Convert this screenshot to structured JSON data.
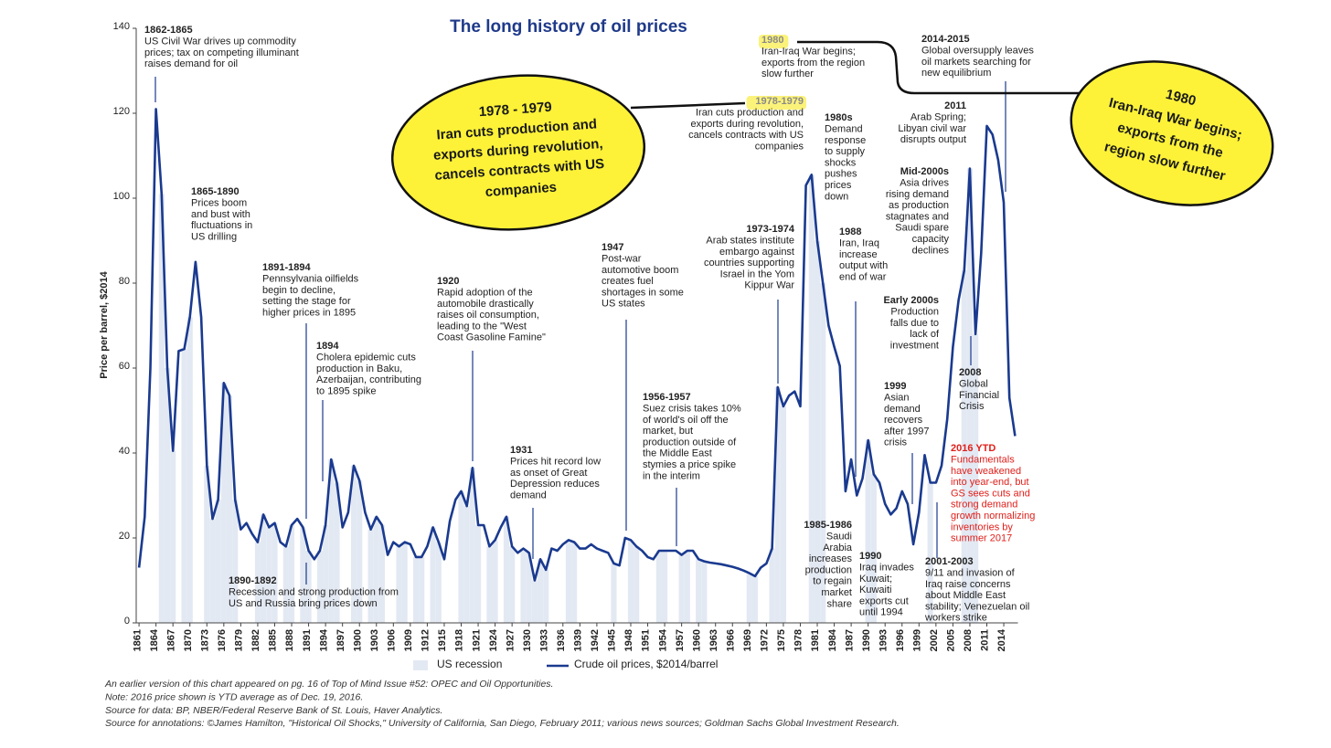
{
  "chart_data": {
    "type": "line",
    "title": "The long history of oil prices",
    "y_label": "Price per barrel, $2014",
    "xlim": [
      1860.5,
      2016.5
    ],
    "ylim": [
      0,
      140
    ],
    "yticks": [
      0,
      20,
      40,
      60,
      80,
      100,
      120,
      140
    ],
    "xticks": [
      1861,
      1864,
      1867,
      1870,
      1873,
      1876,
      1879,
      1882,
      1885,
      1888,
      1891,
      1894,
      1897,
      1900,
      1903,
      1906,
      1909,
      1912,
      1915,
      1918,
      1921,
      1924,
      1927,
      1930,
      1933,
      1936,
      1939,
      1942,
      1945,
      1948,
      1951,
      1954,
      1957,
      1960,
      1963,
      1966,
      1969,
      1972,
      1975,
      1978,
      1981,
      1984,
      1987,
      1990,
      1993,
      1996,
      1999,
      2002,
      2005,
      2008,
      2011,
      2014
    ],
    "x": [
      1861,
      1862,
      1863,
      1864,
      1865,
      1866,
      1867,
      1868,
      1869,
      1870,
      1871,
      1872,
      1873,
      1874,
      1875,
      1876,
      1877,
      1878,
      1879,
      1880,
      1881,
      1882,
      1883,
      1884,
      1885,
      1886,
      1887,
      1888,
      1889,
      1890,
      1891,
      1892,
      1893,
      1894,
      1895,
      1896,
      1897,
      1898,
      1899,
      1900,
      1901,
      1902,
      1903,
      1904,
      1905,
      1906,
      1907,
      1908,
      1909,
      1910,
      1911,
      1912,
      1913,
      1914,
      1915,
      1916,
      1917,
      1918,
      1919,
      1920,
      1921,
      1922,
      1923,
      1924,
      1925,
      1926,
      1927,
      1928,
      1929,
      1930,
      1931,
      1932,
      1933,
      1934,
      1935,
      1936,
      1937,
      1938,
      1939,
      1940,
      1941,
      1942,
      1943,
      1944,
      1945,
      1946,
      1947,
      1948,
      1949,
      1950,
      1951,
      1952,
      1953,
      1954,
      1955,
      1956,
      1957,
      1958,
      1959,
      1960,
      1961,
      1962,
      1963,
      1964,
      1965,
      1966,
      1967,
      1968,
      1969,
      1970,
      1971,
      1972,
      1973,
      1974,
      1975,
      1976,
      1977,
      1978,
      1979,
      1980,
      1981,
      1982,
      1983,
      1984,
      1985,
      1986,
      1987,
      1988,
      1989,
      1990,
      1991,
      1992,
      1993,
      1994,
      1995,
      1996,
      1997,
      1998,
      1999,
      2000,
      2001,
      2002,
      2003,
      2004,
      2005,
      2006,
      2007,
      2008,
      2009,
      2010,
      2011,
      2012,
      2013,
      2014,
      2015,
      2016
    ],
    "series": [
      {
        "name": "Crude oil prices, $2014/barrel",
        "color": "#1a3a8f",
        "values": [
          13,
          25,
          60,
          121,
          101,
          60,
          40.5,
          64,
          64.5,
          72,
          85,
          72,
          37,
          24.5,
          29,
          56.5,
          53.5,
          29,
          22,
          23.5,
          21,
          19,
          25.5,
          22.5,
          23.5,
          19,
          18,
          23,
          24.5,
          22.5,
          17,
          15,
          17,
          23,
          38.5,
          33,
          22.5,
          26,
          37,
          33.5,
          26,
          22,
          25,
          23,
          16,
          19,
          18,
          19,
          18.5,
          15.5,
          15.5,
          18,
          22.5,
          19,
          15,
          24,
          29,
          31,
          27.5,
          36.5,
          23,
          23,
          18,
          19.5,
          22.5,
          25,
          18,
          16.5,
          17.5,
          16.5,
          10,
          15,
          12.5,
          17.5,
          17,
          18.5,
          19.5,
          19,
          17.5,
          17.5,
          18.5,
          17.5,
          17,
          16.5,
          14,
          13.5,
          20,
          19.5,
          18,
          17,
          15.5,
          15,
          17,
          17,
          17,
          17,
          16,
          17,
          17,
          15,
          14.5,
          14.2,
          14,
          13.8,
          13.5,
          13.2,
          12.8,
          12.3,
          11.7,
          11,
          13,
          14,
          17.5,
          55.5,
          51,
          53.5,
          54.5,
          51,
          103,
          105.5,
          90,
          80,
          70,
          65,
          60.5,
          31,
          38.5,
          30,
          34,
          43,
          35,
          33,
          28,
          25.5,
          27,
          31,
          28,
          18.5,
          26,
          39.5,
          33,
          33,
          37,
          48,
          65,
          76,
          83,
          107,
          68,
          87,
          117,
          115,
          109,
          99,
          53,
          44
        ]
      }
    ],
    "recession": {
      "name": "US recession",
      "color": "#e3e9f3",
      "years": [
        1865,
        1866,
        1867,
        1869,
        1870,
        1873,
        1874,
        1875,
        1876,
        1877,
        1878,
        1882,
        1883,
        1884,
        1885,
        1887,
        1888,
        1890,
        1891,
        1893,
        1894,
        1895,
        1896,
        1899,
        1900,
        1902,
        1903,
        1904,
        1907,
        1908,
        1910,
        1911,
        1913,
        1914,
        1918,
        1919,
        1920,
        1921,
        1923,
        1924,
        1926,
        1927,
        1929,
        1930,
        1931,
        1932,
        1933,
        1937,
        1938,
        1945,
        1948,
        1949,
        1953,
        1954,
        1957,
        1958,
        1960,
        1961,
        1969,
        1970,
        1973,
        1974,
        1975,
        1980,
        1981,
        1982,
        1990,
        1991,
        2001,
        2007,
        2008,
        2009
      ]
    },
    "annotations": [
      {
        "title": "1862-1865",
        "lines": [
          "US Civil War drives up commodity",
          "prices; tax on competing illuminant",
          "raises demand for oil"
        ]
      },
      {
        "title": "1865-1890",
        "lines": [
          "Prices boom",
          "and bust with",
          "fluctuations in",
          "US drilling"
        ]
      },
      {
        "title": "1891-1894",
        "lines": [
          "Pennsylvania oilfields",
          "begin to decline,",
          "setting the stage for",
          "higher prices in 1895"
        ]
      },
      {
        "title": "1894",
        "lines": [
          "Cholera epidemic cuts",
          "production in Baku,",
          "Azerbaijan, contributing",
          "to 1895 spike"
        ]
      },
      {
        "title": "1890-1892",
        "lines": [
          "Recession and strong production from",
          "US and Russia bring prices down"
        ]
      },
      {
        "title": "1920",
        "lines": [
          "Rapid adoption of the",
          "automobile drastically",
          "raises oil consumption,",
          "leading to the \"West",
          "Coast Gasoline Famine\""
        ]
      },
      {
        "title": "1931",
        "lines": [
          "Prices hit record low",
          "as onset of Great",
          "Depression reduces",
          "demand"
        ]
      },
      {
        "title": "1947",
        "lines": [
          "Post-war",
          "automotive boom",
          "creates fuel",
          "shortages in some",
          "US states"
        ]
      },
      {
        "title": "1956-1957",
        "lines": [
          "Suez crisis takes 10%",
          "of world's oil off the",
          "market, but",
          "production outside of",
          "the Middle East",
          "stymies a price spike",
          "in the interim"
        ]
      },
      {
        "title": "1973-1974",
        "lines": [
          "Arab states institute",
          "embargo against",
          "countries supporting",
          "Israel in the Yom",
          "Kippur War"
        ]
      },
      {
        "title": "1978-1979",
        "lines": [
          "Iran cuts production and",
          "exports during revolution,",
          "cancels contracts with US",
          "companies"
        ]
      },
      {
        "title": "1980",
        "lines": [
          "Iran-Iraq War begins;",
          "exports from the region",
          "slow further"
        ]
      },
      {
        "title": "1980s",
        "lines": [
          "Demand",
          "response",
          "to supply",
          "shocks",
          "pushes",
          "prices",
          "down"
        ]
      },
      {
        "title": "1985-1986",
        "lines": [
          "Saudi",
          "Arabia",
          "increases",
          "production",
          "to regain",
          "market",
          "share"
        ]
      },
      {
        "title": "1988",
        "lines": [
          "Iran, Iraq",
          "increase",
          "output with",
          "end of war"
        ]
      },
      {
        "title": "1990",
        "lines": [
          "Iraq invades",
          "Kuwait;",
          "Kuwaiti",
          "exports cut",
          "until 1994"
        ]
      },
      {
        "title": "Early 2000s",
        "lines": [
          "Production",
          "falls due to",
          "lack of",
          "investment"
        ]
      },
      {
        "title": "1999",
        "lines": [
          "Asian",
          "demand",
          "recovers",
          "after 1997",
          "crisis"
        ]
      },
      {
        "title": "Mid-2000s",
        "lines": [
          "Asia drives",
          "rising demand",
          "as production",
          "stagnates and",
          "Saudi spare",
          "capacity",
          "declines"
        ]
      },
      {
        "title": "2011",
        "lines": [
          "Arab Spring;",
          "Libyan civil war",
          "disrupts output"
        ]
      },
      {
        "title": "2014-2015",
        "lines": [
          "Global oversupply leaves",
          "oil markets searching for",
          "new equilibrium"
        ]
      },
      {
        "title": "2008",
        "lines": [
          "Global",
          "Financial",
          "Crisis"
        ]
      },
      {
        "title": "2001-2003",
        "lines": [
          "9/11 and invasion of",
          "Iraq raise concerns",
          "about Middle East",
          "stability; Venezuelan oil",
          "workers strike"
        ]
      },
      {
        "title": "2016 YTD",
        "lines": [
          "Fundamentals",
          "have weakened",
          "into year-end, but",
          "GS sees cuts and",
          "strong demand",
          "growth normalizing",
          "inventories by",
          "summer 2017"
        ]
      }
    ],
    "callouts": [
      {
        "lines": [
          "1978 - 1979",
          "Iran cuts production and",
          "exports during revolution,",
          "cancels contracts with US",
          "companies"
        ]
      },
      {
        "lines": [
          "1980",
          "Iran-Iraq War begins;",
          "exports from the",
          "region slow further"
        ]
      }
    ],
    "notes": [
      "An earlier version of this chart appeared on pg. 16 of Top of Mind Issue #52: OPEC and Oil Opportunities.",
      "Note: 2016 price shown is YTD average as of Dec. 19, 2016.",
      "Source for data: BP, NBER/Federal Reserve Bank of St. Louis, Haver Analytics.",
      "Source for annotations: ©James Hamilton, \"Historical Oil Shocks,\" University of California, San Diego, February 2011; various news sources; Goldman Sachs Global Investment Research."
    ]
  }
}
